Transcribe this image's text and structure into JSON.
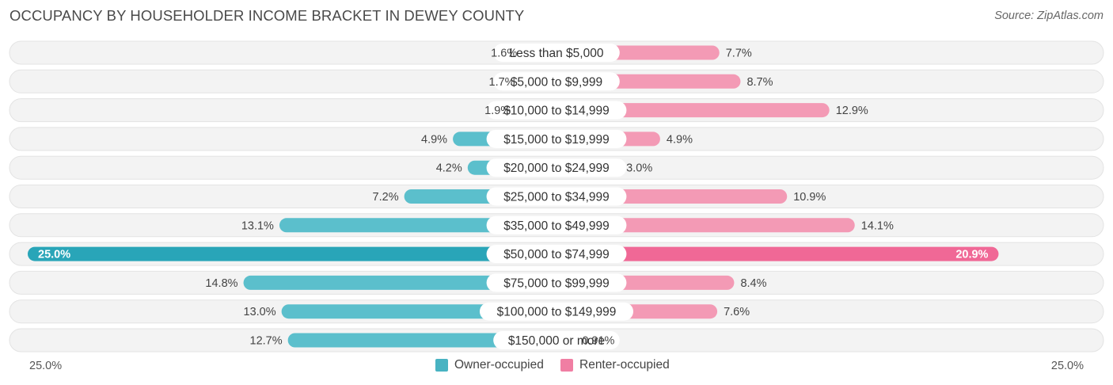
{
  "title": "OCCUPANCY BY HOUSEHOLDER INCOME BRACKET IN DEWEY COUNTY",
  "source": "Source: ZipAtlas.com",
  "colors": {
    "owner": "#5bbfcc",
    "owner_highlight": "#29a5b8",
    "renter": "#f39ab5",
    "renter_highlight": "#f06896",
    "row_bg": "#efefef"
  },
  "axis": {
    "left_label": "25.0%",
    "right_label": "25.0%"
  },
  "legend": [
    {
      "label": "Owner-occupied",
      "color": "#48b3c2"
    },
    {
      "label": "Renter-occupied",
      "color": "#f07ea3"
    }
  ],
  "chart_data": {
    "type": "bar",
    "orientation": "horizontal-diverging",
    "xlim": [
      -25,
      25
    ],
    "categories": [
      "Less than $5,000",
      "$5,000 to $9,999",
      "$10,000 to $14,999",
      "$15,000 to $19,999",
      "$20,000 to $24,999",
      "$25,000 to $34,999",
      "$35,000 to $49,999",
      "$50,000 to $74,999",
      "$75,000 to $99,999",
      "$100,000 to $149,999",
      "$150,000 or more"
    ],
    "series": [
      {
        "name": "Owner-occupied",
        "values": [
          1.6,
          1.7,
          1.9,
          4.9,
          4.2,
          7.2,
          13.1,
          25.0,
          14.8,
          13.0,
          12.7
        ],
        "labels": [
          "1.6%",
          "1.7%",
          "1.9%",
          "4.9%",
          "4.2%",
          "7.2%",
          "13.1%",
          "25.0%",
          "14.8%",
          "13.0%",
          "12.7%"
        ]
      },
      {
        "name": "Renter-occupied",
        "values": [
          7.7,
          8.7,
          12.9,
          4.9,
          3.0,
          10.9,
          14.1,
          20.9,
          8.4,
          7.6,
          0.91
        ],
        "labels": [
          "7.7%",
          "8.7%",
          "12.9%",
          "4.9%",
          "3.0%",
          "10.9%",
          "14.1%",
          "20.9%",
          "8.4%",
          "7.6%",
          "0.91%"
        ]
      }
    ],
    "highlight_index": 7
  }
}
